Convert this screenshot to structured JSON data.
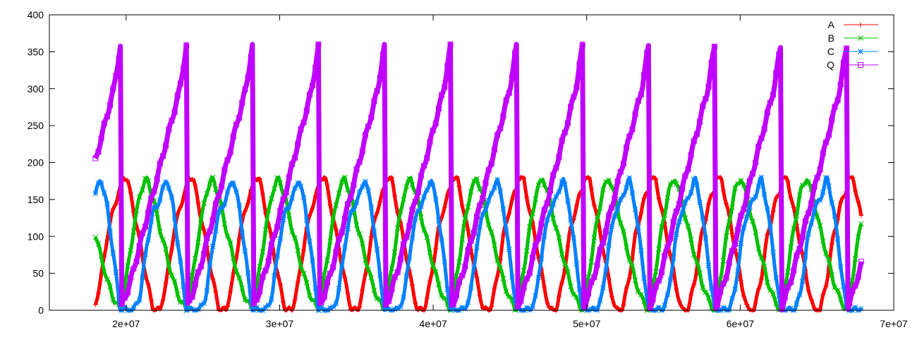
{
  "chart_data": {
    "type": "line",
    "title": "",
    "xlabel": "",
    "ylabel": "",
    "xlim": [
      15000000,
      70000000
    ],
    "ylim": [
      0,
      400
    ],
    "grid": false,
    "legend_position": "top-right",
    "x_ticks": [
      {
        "value": 20000000,
        "label": "2e+07"
      },
      {
        "value": 30000000,
        "label": "3e+07"
      },
      {
        "value": 40000000,
        "label": "4e+07"
      },
      {
        "value": 50000000,
        "label": "5e+07"
      },
      {
        "value": 60000000,
        "label": "6e+07"
      },
      {
        "value": 70000000,
        "label": "7e+07"
      }
    ],
    "y_ticks": [
      {
        "value": 0,
        "label": "0"
      },
      {
        "value": 50,
        "label": "50"
      },
      {
        "value": 100,
        "label": "100"
      },
      {
        "value": 150,
        "label": "150"
      },
      {
        "value": 200,
        "label": "200"
      },
      {
        "value": 250,
        "label": "250"
      },
      {
        "value": 300,
        "label": "300"
      },
      {
        "value": 350,
        "label": "350"
      },
      {
        "value": 400,
        "label": "400"
      }
    ],
    "x_start": 18000000,
    "x_end": 67900000,
    "cycle_start": 19630000,
    "cycle_period": 4300000,
    "cycle_phase": [
      0,
      0.1,
      0.2,
      0.3,
      0.4,
      0.5,
      0.6,
      0.7,
      0.8,
      0.9,
      1.0
    ],
    "series": [
      {
        "name": "A",
        "color": "#ff0000",
        "marker": "plus",
        "cycle_values": [
          180,
          180,
          135,
          90,
          40,
          0,
          0,
          40,
          100,
          140,
          165
        ]
      },
      {
        "name": "B",
        "color": "#00c000",
        "marker": "cross",
        "cycle_values": [
          0,
          50,
          110,
          160,
          180,
          150,
          110,
          75,
          40,
          15,
          0
        ]
      },
      {
        "name": "C",
        "color": "#0080ff",
        "marker": "star",
        "cycle_values": [
          0,
          0,
          0,
          20,
          90,
          135,
          150,
          180,
          140,
          70,
          0
        ]
      },
      {
        "name": "Q",
        "color": "#c000ff",
        "marker": "square",
        "cycle_values": [
          0,
          25,
          55,
          90,
          125,
          160,
          195,
          230,
          265,
          300,
          358
        ]
      }
    ]
  }
}
